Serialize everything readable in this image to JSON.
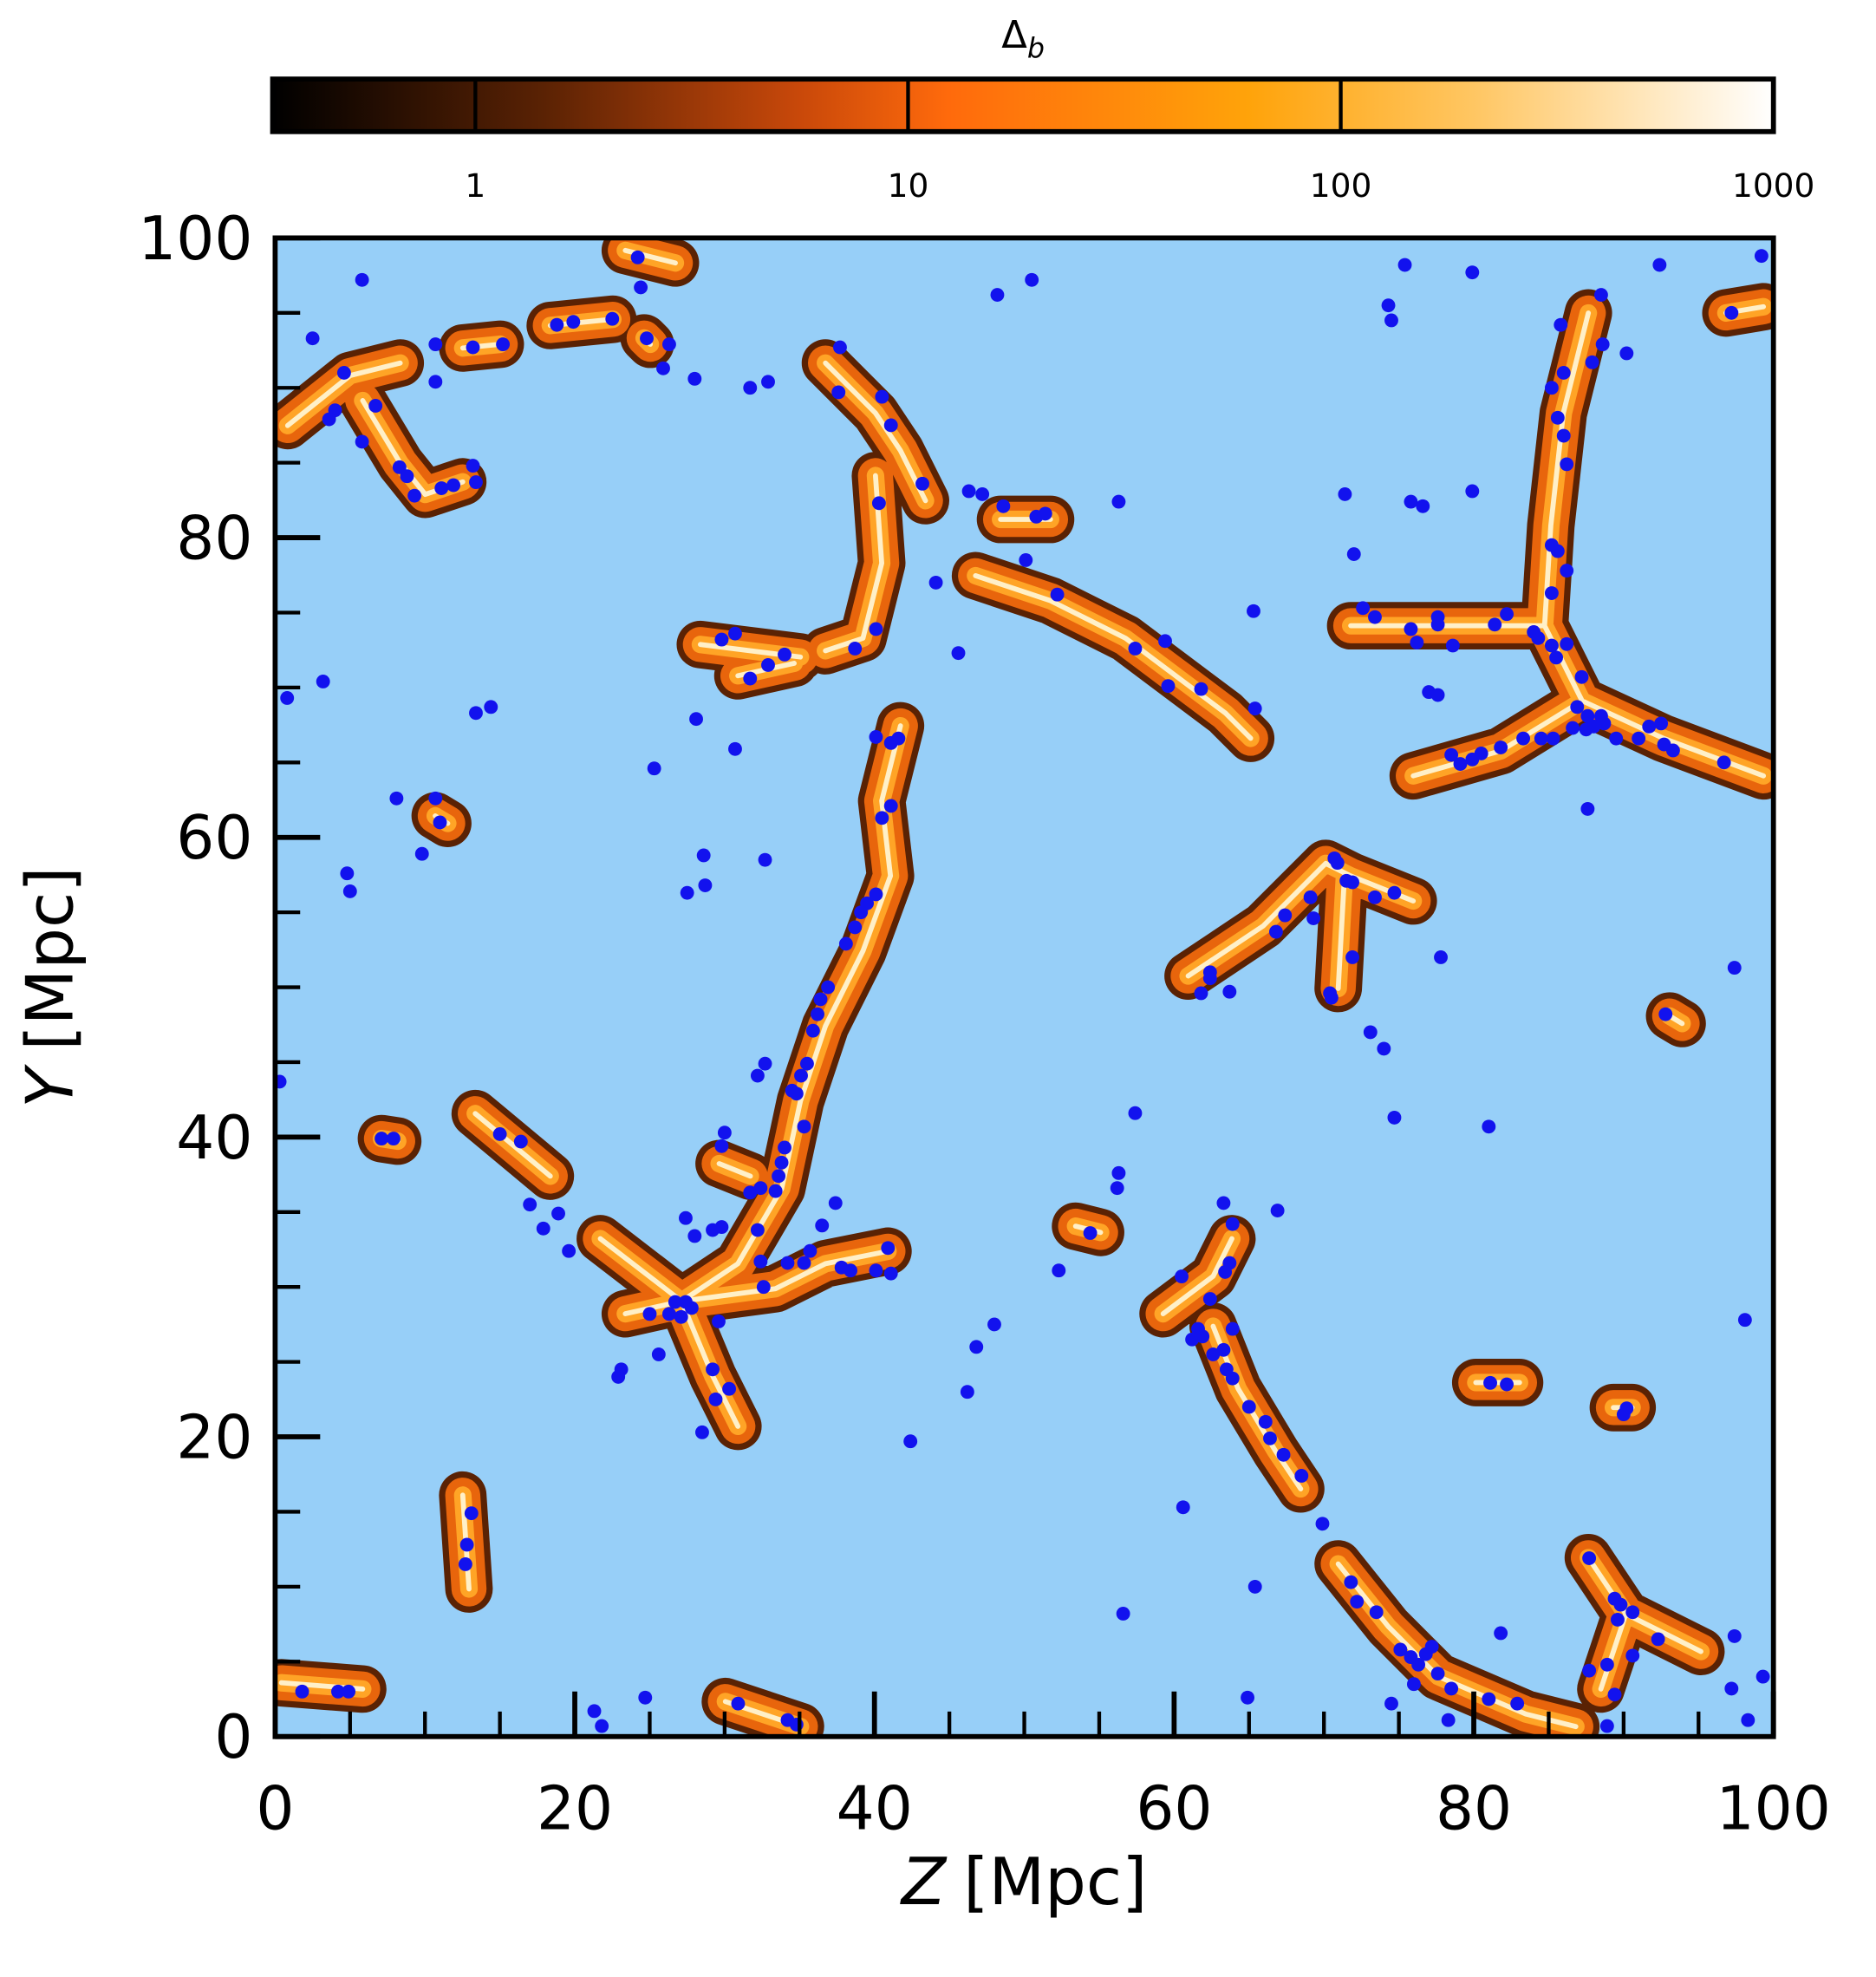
{
  "chart_data": {
    "type": "scatter",
    "x_label_var": "Z",
    "x_label_unit": "[Mpc]",
    "y_label_var": "Y",
    "y_label_unit": "[Mpc]",
    "xlim": [
      0,
      100
    ],
    "ylim": [
      0,
      100
    ],
    "xticks": [
      0,
      20,
      40,
      60,
      80,
      100
    ],
    "yticks": [
      0,
      20,
      40,
      60,
      80,
      100
    ],
    "xminorticks": [
      5,
      10,
      15,
      25,
      30,
      35,
      45,
      50,
      55,
      65,
      70,
      75,
      85,
      90,
      95
    ],
    "yminorticks": [
      5,
      10,
      15,
      25,
      30,
      35,
      45,
      50,
      55,
      65,
      70,
      75,
      85,
      90,
      95
    ],
    "background": "#97cff8",
    "series": [
      {
        "color": "#1212ee",
        "x": [
          2.5,
          4.6,
          4.0,
          3.6,
          6.7,
          5.8,
          8.3,
          8.8,
          9.3,
          11.1,
          11.9,
          13.2,
          13.4,
          10.7,
          10.7,
          13.2,
          15.2,
          5.8,
          18.8,
          19.9,
          22.5,
          24.2,
          24.4,
          24.8,
          26.3,
          25.9,
          28.0,
          31.7,
          32.9,
          37.7,
          37.6,
          40.5,
          41.1,
          40.3,
          43.2,
          46.3,
          47.2,
          48.6,
          50.8,
          51.4,
          50.1,
          52.2,
          44.1,
          48.2,
          50.5,
          56.3,
          57.4,
          59.4,
          59.6,
          61.8,
          65.3,
          65.4,
          40.1,
          38.7,
          34.0,
          32.9,
          30.7,
          29.8,
          31.7,
          45.6,
          3.2,
          0.8,
          13.4,
          14.4,
          28.1,
          30.7,
          25.3,
          8.1,
          10.7,
          11.0,
          9.8,
          4.8,
          5.0,
          28.6,
          32.7,
          28.7,
          27.5,
          40.1,
          41.1,
          41.6,
          41.1,
          40.5,
          40.1,
          39.5,
          39.1,
          38.7,
          38.1,
          36.9,
          36.4,
          36.2,
          35.9,
          35.5,
          35.1,
          34.5,
          32.7,
          32.2,
          34.8,
          35.3,
          34.0,
          33.8,
          33.6,
          33.4,
          32.4,
          30.0,
          29.8,
          31.7,
          32.2,
          32.4,
          29.8,
          29.2,
          27.4,
          28.0,
          34.2,
          35.3,
          35.7,
          36.5,
          37.4,
          37.8,
          38.4,
          40.1,
          40.9,
          41.1,
          32.6,
          26.7,
          27.1,
          26.3,
          27.4,
          27.8,
          25.0,
          25.6,
          29.6,
          29.2,
          30.3,
          29.4,
          28.5,
          23.1,
          22.9,
          19.6,
          18.9,
          17.9,
          17.0,
          16.4,
          15.0,
          7.1,
          7.9,
          42.4,
          13.1,
          12.8,
          12.7,
          1.8,
          4.2,
          4.9,
          21.3,
          21.8,
          24.7,
          30.9,
          34.2,
          34.8,
          0.3,
          75.4,
          79.9,
          74.3,
          74.5,
          85.8,
          88.5,
          92.4,
          99.2,
          97.2,
          87.9,
          90.2,
          88.6,
          86.0,
          85.2,
          85.6,
          86.0,
          86.2,
          71.4,
          75.8,
          76.6,
          79.9,
          72.0,
          85.2,
          85.6,
          86.2,
          85.2,
          82.2,
          72.6,
          73.4,
          75.8,
          76.2,
          77.6,
          77.6,
          78.6,
          81.4,
          84.0,
          84.3,
          85.2,
          86.2,
          85.5,
          87.2,
          77.0,
          77.6,
          86.9,
          87.6,
          88.5,
          88.0,
          87.5,
          86.6,
          88.7,
          89.5,
          84.5,
          83.3,
          85.3,
          81.8,
          80.5,
          79.9,
          79.1,
          78.5,
          91.0,
          91.7,
          92.5,
          92.7,
          93.3,
          96.7,
          87.6,
          70.7,
          70.9,
          71.5,
          71.9,
          73.4,
          74.7,
          69.1,
          67.4,
          66.8,
          69.3,
          62.4,
          62.4,
          61.8,
          63.7,
          70.4,
          70.5,
          71.9,
          77.8,
          97.4,
          92.8,
          73.1,
          74.0,
          74.7,
          81.0,
          57.4,
          56.3,
          56.2,
          54.4,
          63.3,
          63.9,
          66.9,
          63.7,
          63.4,
          60.5,
          62.4,
          61.6,
          61.2,
          61.9,
          63.9,
          62.6,
          63.3,
          63.9,
          63.5,
          65.0,
          66.1,
          66.4,
          67.3,
          68.5,
          69.9,
          52.3,
          48.0,
          46.8,
          46.2,
          60.6,
          56.6,
          65.4,
          64.9,
          71.8,
          72.2,
          73.5,
          81.8,
          75.1,
          75.8,
          76.3,
          76.8,
          77.2,
          77.6,
          78.5,
          76.0,
          74.5,
          81.0,
          82.9,
          78.3,
          81.1,
          82.2,
          90.0,
          90.2,
          98.1,
          87.7,
          89.4,
          89.8,
          89.6,
          90.6,
          87.7,
          88.9,
          90.6,
          92.3,
          89.4,
          88.9,
          97.4,
          99.3,
          98.3,
          97.2
        ],
        "y": [
          93.3,
          91.0,
          88.5,
          87.9,
          88.8,
          86.4,
          84.7,
          84.1,
          82.8,
          83.3,
          83.5,
          84.8,
          83.7,
          90.4,
          92.9,
          92.7,
          92.9,
          97.2,
          94.2,
          94.4,
          94.6,
          98.7,
          96.7,
          93.3,
          92.9,
          91.3,
          90.6,
          90.0,
          90.4,
          92.7,
          89.7,
          89.4,
          87.5,
          82.3,
          83.6,
          83.1,
          82.9,
          82.1,
          81.4,
          81.6,
          78.5,
          76.2,
          77.0,
          96.2,
          97.2,
          82.4,
          72.6,
          73.1,
          70.1,
          69.9,
          75.1,
          68.6,
          73.9,
          72.6,
          72.2,
          71.5,
          73.6,
          73.2,
          70.6,
          72.3,
          70.4,
          69.3,
          68.3,
          68.7,
          67.9,
          65.9,
          64.6,
          62.6,
          62.6,
          61.0,
          58.9,
          57.6,
          56.4,
          58.8,
          58.5,
          56.8,
          56.3,
          66.7,
          66.3,
          66.6,
          62.1,
          61.3,
          56.2,
          55.6,
          55.0,
          54.0,
          52.9,
          50.0,
          49.2,
          48.2,
          47.1,
          44.9,
          44.1,
          43.1,
          44.9,
          44.1,
          42.9,
          40.7,
          39.3,
          38.3,
          37.4,
          36.4,
          36.6,
          40.3,
          39.4,
          36.3,
          33.8,
          31.7,
          34.0,
          33.8,
          34.6,
          33.4,
          31.6,
          31.6,
          32.4,
          34.1,
          35.6,
          31.3,
          31.1,
          31.1,
          32.6,
          30.9,
          30.0,
          29.0,
          28.0,
          28.2,
          29.0,
          28.6,
          28.2,
          25.5,
          27.7,
          24.5,
          23.2,
          22.5,
          20.3,
          24.5,
          24.0,
          32.4,
          34.9,
          33.9,
          35.5,
          39.7,
          40.2,
          39.9,
          39.9,
          19.7,
          14.9,
          12.8,
          11.5,
          3.0,
          3.0,
          3.0,
          1.7,
          0.7,
          2.6,
          2.2,
          1.1,
          0.8,
          43.7,
          98.2,
          97.7,
          95.5,
          94.5,
          94.2,
          96.2,
          98.2,
          98.8,
          95.0,
          91.7,
          92.3,
          92.9,
          91.0,
          90.0,
          88.0,
          86.8,
          84.9,
          82.9,
          82.4,
          82.1,
          83.1,
          78.9,
          79.5,
          79.1,
          77.8,
          76.3,
          74.9,
          75.3,
          74.7,
          73.9,
          73.0,
          74.7,
          74.2,
          72.8,
          74.2,
          73.7,
          73.3,
          72.8,
          72.9,
          72.0,
          70.7,
          69.7,
          69.5,
          68.7,
          68.1,
          68.1,
          67.4,
          67.2,
          67.3,
          67.6,
          66.6,
          66.6,
          66.6,
          66.6,
          66.0,
          65.6,
          65.2,
          64.9,
          65.5,
          66.6,
          67.4,
          67.6,
          66.2,
          65.8,
          65.0,
          61.9,
          58.6,
          58.3,
          57.1,
          57.0,
          56.0,
          56.3,
          56.0,
          54.8,
          53.7,
          54.6,
          51.0,
          50.6,
          49.6,
          49.7,
          49.6,
          49.3,
          52.0,
          52.0,
          51.3,
          48.2,
          47.0,
          45.9,
          41.3,
          40.7,
          41.6,
          37.6,
          36.6,
          33.6,
          35.6,
          34.2,
          35.1,
          31.6,
          31.0,
          30.7,
          29.2,
          27.2,
          26.5,
          26.7,
          27.2,
          25.5,
          25.8,
          23.9,
          24.5,
          22.0,
          21.0,
          19.9,
          18.8,
          17.4,
          14.2,
          31.1,
          27.5,
          26.0,
          23.0,
          15.3,
          8.2,
          10.0,
          2.6,
          10.3,
          9.0,
          8.3,
          6.9,
          5.8,
          5.3,
          4.8,
          5.5,
          6.0,
          4.2,
          3.2,
          3.5,
          2.2,
          2.5,
          2.2,
          1.1,
          23.6,
          23.5,
          21.5,
          21.9,
          27.8,
          11.9,
          9.2,
          8.8,
          7.8,
          8.3,
          4.4,
          4.8,
          5.4,
          6.5,
          2.8,
          0.7,
          6.7,
          4.0,
          1.1,
          3.2
        ]
      }
    ],
    "colorbar": {
      "label": "Δ",
      "label_subscript": "b",
      "scale": "log",
      "lim": [
        0.34,
        1000
      ],
      "ticks": [
        1,
        10,
        100,
        1000
      ]
    }
  }
}
